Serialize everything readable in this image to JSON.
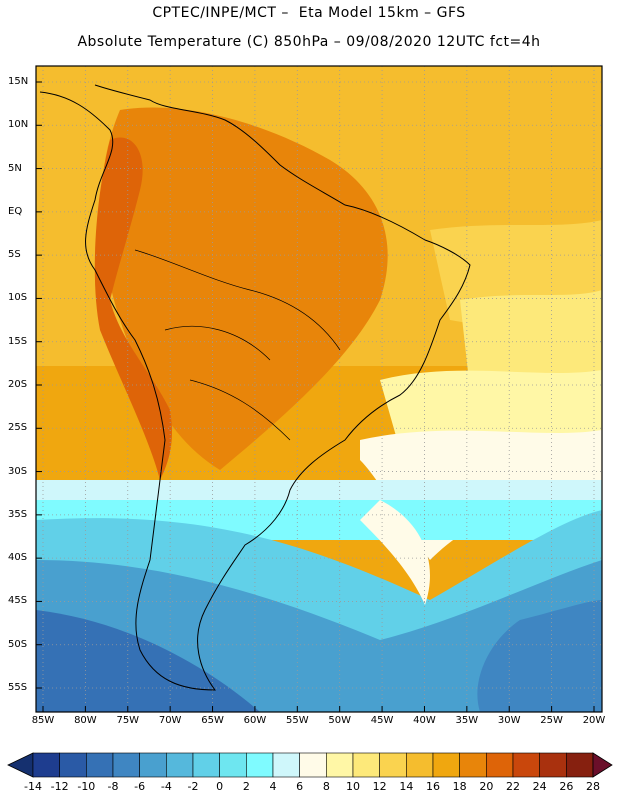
{
  "header": {
    "line1": "CPTEC/INPE/MCT –  Eta Model 15km – GFS",
    "line2": "Absolute Temperature (C) 850hPa – 09/08/2020 12UTC fct=4h"
  },
  "lat_labels": [
    "15N",
    "10N",
    "5N",
    "EQ",
    "5S",
    "10S",
    "15S",
    "20S",
    "25S",
    "30S",
    "35S",
    "40S",
    "45S",
    "50S",
    "55S"
  ],
  "lon_labels": [
    "85W",
    "80W",
    "75W",
    "70W",
    "65W",
    "60W",
    "55W",
    "50W",
    "45W",
    "40W",
    "35W",
    "30W",
    "25W",
    "20W"
  ],
  "colorbar": {
    "labels": [
      "-14",
      "-12",
      "-10",
      "-8",
      "-6",
      "-4",
      "-2",
      "0",
      "2",
      "4",
      "6",
      "8",
      "10",
      "12",
      "14",
      "16",
      "18",
      "20",
      "22",
      "24",
      "26",
      "28"
    ],
    "colors": [
      "#1e3d8f",
      "#2a5aa6",
      "#3571b5",
      "#3f86c2",
      "#49a0cf",
      "#55b8dc",
      "#61d0e8",
      "#6ee6f0",
      "#7ffbff",
      "#cff7fb",
      "#fffbe8",
      "#fff7a6",
      "#fde97a",
      "#fad34f",
      "#f5bd2e",
      "#f0a70f",
      "#e8850a",
      "#de6408",
      "#c9470c",
      "#a9310e",
      "#86200f"
    ],
    "under_color": "#15306f",
    "over_color": "#6b0f2a"
  }
}
